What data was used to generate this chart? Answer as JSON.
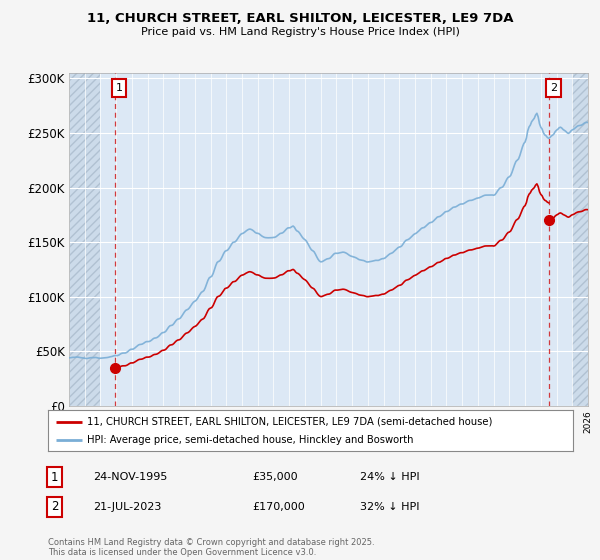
{
  "title": "11, CHURCH STREET, EARL SHILTON, LEICESTER, LE9 7DA",
  "subtitle": "Price paid vs. HM Land Registry's House Price Index (HPI)",
  "legend_line1": "11, CHURCH STREET, EARL SHILTON, LEICESTER, LE9 7DA (semi-detached house)",
  "legend_line2": "HPI: Average price, semi-detached house, Hinckley and Bosworth",
  "annotation1_label": "1",
  "annotation1_date": "24-NOV-1995",
  "annotation1_price": "£35,000",
  "annotation1_hpi": "24% ↓ HPI",
  "annotation2_label": "2",
  "annotation2_date": "21-JUL-2023",
  "annotation2_price": "£170,000",
  "annotation2_hpi": "32% ↓ HPI",
  "footer": "Contains HM Land Registry data © Crown copyright and database right 2025.\nThis data is licensed under the Open Government Licence v3.0.",
  "hpi_color": "#7aaed6",
  "price_color": "#cc0000",
  "annotation_box_color": "#cc0000",
  "background_color": "#f5f5f5",
  "plot_bg_color": "#dce8f5",
  "hatch_color": "#c8d8e8",
  "ylim": [
    0,
    305000
  ],
  "yticks": [
    0,
    50000,
    100000,
    150000,
    200000,
    250000,
    300000
  ],
  "ytick_labels": [
    "£0",
    "£50K",
    "£100K",
    "£150K",
    "£200K",
    "£250K",
    "£300K"
  ],
  "sale1_x": 1995.9,
  "sale1_y": 35000,
  "sale2_x": 2023.55,
  "sale2_y": 170000,
  "xmin": 1993.0,
  "xmax": 2026.0
}
